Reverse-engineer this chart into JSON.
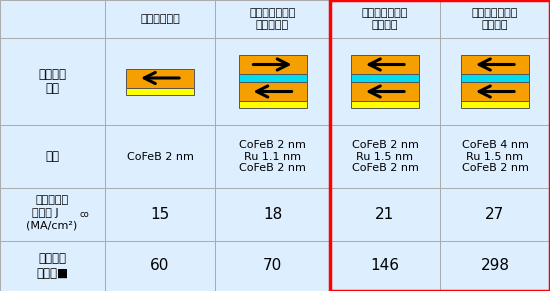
{
  "col_headers": [
    "単層フリー層",
    "積層型フリー層\n反平行結合",
    "積層型フリー層\n平行結合",
    "積層型フリー層\n平行結合"
  ],
  "thickness_data": [
    "CoFeB 2 nm",
    "CoFeB 2 nm\nRu 1.1 nm\nCoFeB 2 nm",
    "CoFeB 2 nm\nRu 1.5 nm\nCoFeB 2 nm",
    "CoFeB 4 nm\nRu 1.5 nm\nCoFeB 2 nm"
  ],
  "jco_data": [
    "15",
    "18",
    "21",
    "27"
  ],
  "stability_data": [
    "60",
    "70",
    "146",
    "298"
  ],
  "row_header_0": "フリー層\n構造",
  "row_header_1": "膜厚",
  "row_header_2": "磁化反転電\n流密度 Jco\n(MA/cm²)",
  "row_header_3": "情報記憶\n安定性■",
  "bg_light": "#ddeeff",
  "bg_white": "#ffffff",
  "orange": "#f5a000",
  "cyan": "#00ddee",
  "yellow": "#ffff00",
  "red_border": "#ff0000",
  "grid_color": "#aaaaaa",
  "text_color": "#000000",
  "diagram_configs": [
    {
      "n_mag": 1,
      "arrows": [
        "left"
      ]
    },
    {
      "n_mag": 2,
      "arrows": [
        "right",
        "left"
      ]
    },
    {
      "n_mag": 2,
      "arrows": [
        "left",
        "left"
      ]
    },
    {
      "n_mag": 2,
      "arrows": [
        "left",
        "left"
      ]
    }
  ]
}
